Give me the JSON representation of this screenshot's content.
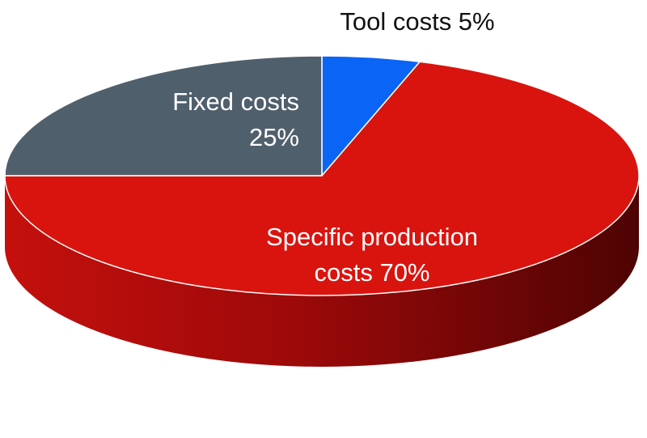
{
  "chart_data": {
    "type": "pie",
    "style": "3d",
    "slices": [
      {
        "label_lines": [
          "Tool costs 5%"
        ],
        "value": 5,
        "color": "#0a64f5"
      },
      {
        "label_lines": [
          "Specific production",
          "costs 70%"
        ],
        "value": 70,
        "color": "#d9140f"
      },
      {
        "label_lines": [
          "Fixed costs",
          "25%"
        ],
        "value": 25,
        "color": "#505f6c"
      }
    ],
    "side_colors": {
      "left": "#c4100d",
      "right": "#4e0303"
    }
  }
}
